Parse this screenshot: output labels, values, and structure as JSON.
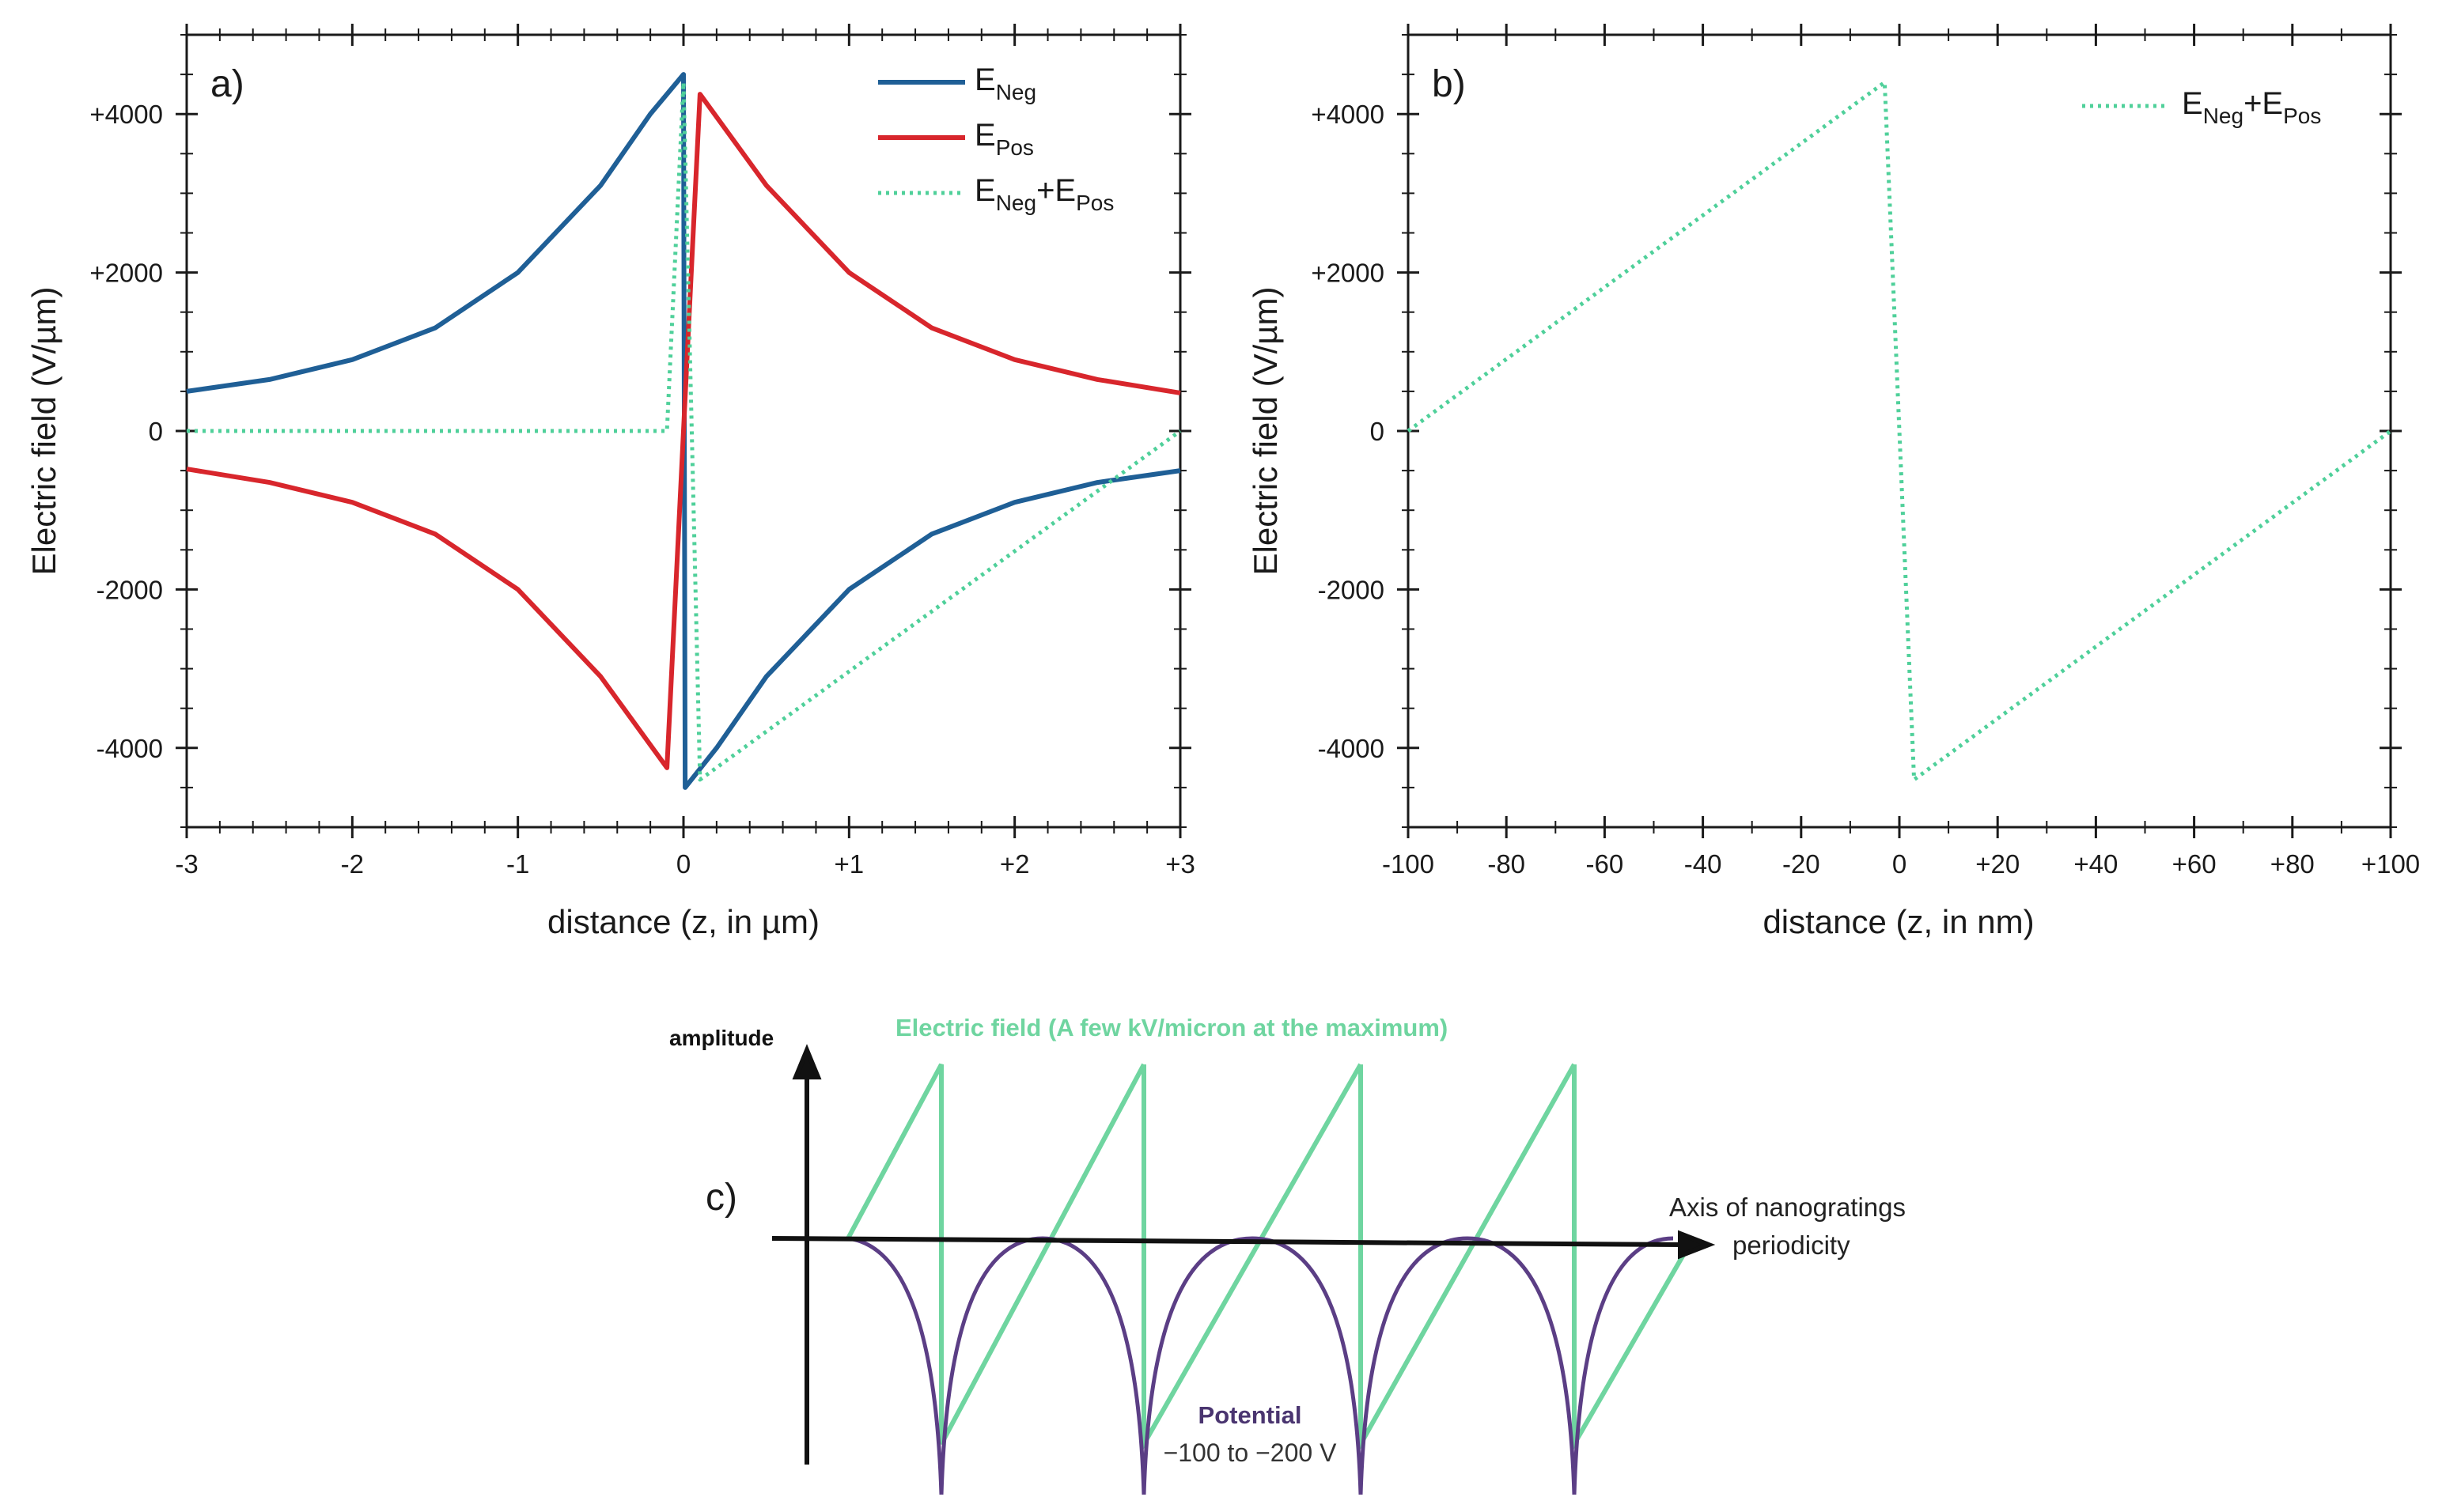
{
  "chart_data": [
    {
      "panel": "a)",
      "type": "line",
      "xlabel": "distance (z, in µm)",
      "ylabel": "Electric field (V/µm)",
      "xlim": [
        -3,
        3
      ],
      "ylim": [
        -5000,
        5000
      ],
      "xticks": [
        -3,
        -2,
        -1,
        0,
        1,
        2,
        3
      ],
      "xtick_labels": [
        "-3",
        "-2",
        "-1",
        "0",
        "+1",
        "+2",
        "+3"
      ],
      "yticks": [
        4000,
        2000,
        0,
        -2000,
        -4000
      ],
      "ytick_labels": [
        "+4000",
        "+2000",
        "0",
        "-2000",
        "-4000"
      ],
      "legend_position": "top-right",
      "series": [
        {
          "name": "E_Neg",
          "label_main": "E",
          "label_sub": "Neg",
          "color": "#1f5f96",
          "style": "solid",
          "x": [
            -3,
            -2.5,
            -2,
            -1.5,
            -1,
            -0.5,
            -0.2,
            0,
            0.01,
            0.2,
            0.5,
            1,
            1.5,
            2,
            2.5,
            3
          ],
          "y": [
            500,
            650,
            900,
            1300,
            2000,
            3100,
            4000,
            4500,
            -4500,
            -4000,
            -3100,
            -2000,
            -1300,
            -900,
            -650,
            -500
          ]
        },
        {
          "name": "E_Pos",
          "label_main": "E",
          "label_sub": "Pos",
          "color": "#d8262c",
          "style": "solid",
          "x": [
            -3,
            -2.5,
            -2,
            -1.5,
            -1,
            -0.5,
            -0.1,
            0.1,
            0.5,
            1,
            1.5,
            2,
            2.5,
            3
          ],
          "y": [
            -480,
            -650,
            -900,
            -1300,
            -2000,
            -3100,
            -4250,
            4250,
            3100,
            2000,
            1300,
            900,
            650,
            480
          ]
        },
        {
          "name": "E_Neg+E_Pos",
          "label_main": "E",
          "label_sub": "Neg",
          "label_plus": "+",
          "label_main2": "E",
          "label_sub2": "Pos",
          "color": "#4fd09a",
          "style": "dotted",
          "x": [
            -3,
            -0.1,
            0,
            0.1,
            3
          ],
          "y": [
            0,
            0,
            4400,
            -4400,
            0
          ]
        }
      ]
    },
    {
      "panel": "b)",
      "type": "line",
      "xlabel": "distance (z, in nm)",
      "ylabel": "Electric field (V/µm)",
      "xlim": [
        -100,
        100
      ],
      "ylim": [
        -5000,
        5000
      ],
      "xticks": [
        -100,
        -80,
        -60,
        -40,
        -20,
        0,
        20,
        40,
        60,
        80,
        100
      ],
      "xtick_labels": [
        "-100",
        "-80",
        "-60",
        "-40",
        "-20",
        "0",
        "+20",
        "+40",
        "+60",
        "+80",
        "+100"
      ],
      "yticks": [
        4000,
        2000,
        0,
        -2000,
        -4000
      ],
      "ytick_labels": [
        "+4000",
        "+2000",
        "0",
        "-2000",
        "-4000"
      ],
      "legend_position": "top-right",
      "series": [
        {
          "name": "E_Neg+E_Pos",
          "label_main": "E",
          "label_sub": "Neg",
          "label_plus": "+",
          "label_main2": "E",
          "label_sub2": "Pos",
          "color": "#4fd09a",
          "style": "dotted",
          "x": [
            -100,
            -3,
            3,
            100
          ],
          "y": [
            0,
            4400,
            -4400,
            0
          ]
        }
      ]
    }
  ],
  "sketch": {
    "panel": "c)",
    "y_axis_label": "amplitude",
    "x_axis_label_line1": "Axis of nanogratings",
    "x_axis_label_line2": "periodicity",
    "field_label": "Electric field (A few kV/micron at the maximum)",
    "potential_label_line1": "Potential",
    "potential_label_line2": "−100 to −200 V",
    "field_color": "#6fd5a0",
    "potential_color": "#5b3e85",
    "axis_color": "#111111"
  }
}
